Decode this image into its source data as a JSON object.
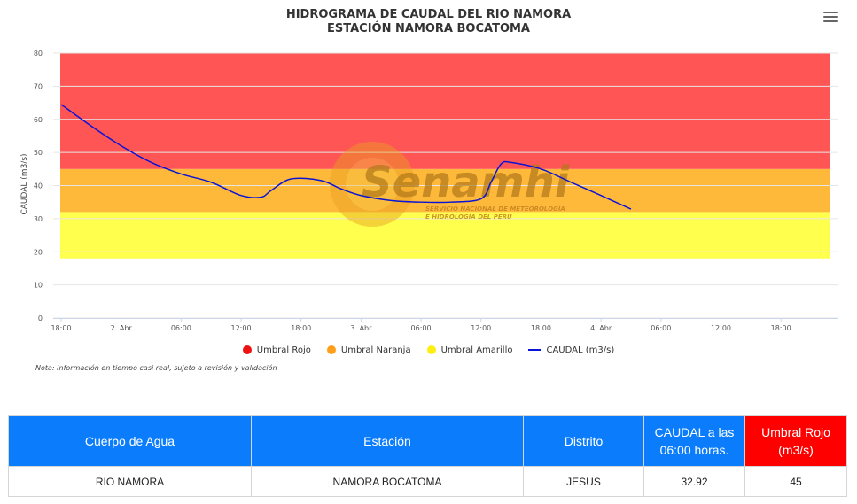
{
  "chart": {
    "title_line1": "HIDROGRAMA DE CAUDAL DEL RIO NAMORA",
    "title_line2": "ESTACIÓN NAMORA BOCATOMA",
    "ylabel": "CAUDAL (m3/s)",
    "menu_icon": "hamburger-menu-icon"
  },
  "legend": {
    "umbral_rojo": "Umbral Rojo",
    "umbral_naranja": "Umbral Naranja",
    "umbral_amarillo": "Umbral Amarillo",
    "caudal": "CAUDAL (m3/s)"
  },
  "watermark": {
    "name": "Senamhi",
    "line1": "SERVICIO NACIONAL DE METEOROLOGÍA",
    "line2": "E HIDROLOGÍA DEL PERÚ"
  },
  "note": "Nota: Información en tiempo casi real, sujeto a revisión y validación",
  "chart_data": {
    "type": "line",
    "title": "HIDROGRAMA DE CAUDAL DEL RIO NAMORA",
    "subtitle": "ESTACIÓN NAMORA BOCATOMA",
    "xlabel": "",
    "ylabel": "CAUDAL (m3/s)",
    "ylim": [
      0,
      80
    ],
    "y_ticks": [
      0,
      10,
      20,
      30,
      40,
      50,
      60,
      70,
      80
    ],
    "x_ticks": [
      "18:00",
      "2. Abr",
      "06:00",
      "12:00",
      "18:00",
      "3. Abr",
      "06:00",
      "12:00",
      "18:00",
      "4. Abr",
      "06:00",
      "12:00",
      "18:00"
    ],
    "x_unit": "hours since 18:00 on 1 Apr",
    "xlim": [
      0,
      72
    ],
    "grid": true,
    "legend_position": "bottom",
    "bands": [
      {
        "name": "Umbral Amarillo",
        "from": 18,
        "to": 32,
        "color": "#ffff4d"
      },
      {
        "name": "Umbral Naranja",
        "from": 32,
        "to": 45,
        "color": "#ffb93a"
      },
      {
        "name": "Umbral Rojo",
        "from": 45,
        "to": 80,
        "color": "#ff5555"
      }
    ],
    "series": [
      {
        "name": "CAUDAL (m3/s)",
        "color": "#0a14d6",
        "x": [
          0,
          3,
          6,
          9,
          12,
          15,
          18,
          20,
          21,
          23,
          26,
          28,
          30,
          33,
          36,
          39,
          42,
          43,
          44,
          45,
          48,
          51,
          54,
          57
        ],
        "values": [
          64.5,
          58,
          52,
          47,
          43.5,
          41,
          37,
          36.5,
          38.5,
          42,
          41.5,
          39,
          37,
          35.5,
          35,
          35,
          36,
          41,
          46.5,
          47,
          45,
          41,
          37,
          32.9
        ]
      }
    ]
  },
  "table": {
    "headers": [
      "Cuerpo de Agua",
      "Estación",
      "Distrito",
      "CAUDAL a las 06:00 horas.",
      "Umbral Rojo (m3/s)"
    ],
    "row": [
      "RIO NAMORA",
      "NAMORA BOCATOMA",
      "JESUS",
      "32.92",
      "45"
    ]
  }
}
